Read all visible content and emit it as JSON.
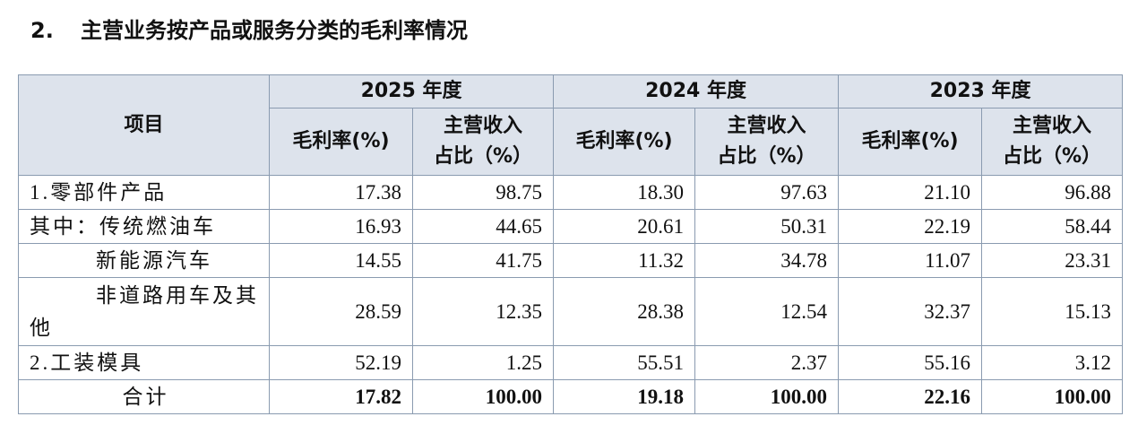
{
  "heading": {
    "number": "2.",
    "title": "主营业务按产品或服务分类的毛利率情况"
  },
  "table": {
    "corner": "项目",
    "years": [
      "2025 年度",
      "2024 年度",
      "2023 年度"
    ],
    "subheaders": [
      "毛利率(%)",
      "主营收入\n占比（%）",
      "毛利率(%)",
      "主营收入\n占比（%）",
      "毛利率(%)",
      "主营收入\n占比（%）"
    ],
    "rows": [
      {
        "label": "1.零部件产品",
        "cells": [
          "17.38",
          "98.75",
          "18.30",
          "97.63",
          "21.10",
          "96.88"
        ]
      },
      {
        "label": "其中：传统燃油车",
        "cells": [
          "16.93",
          "44.65",
          "20.61",
          "50.31",
          "22.19",
          "58.44"
        ]
      },
      {
        "label": "新能源汽车",
        "cells": [
          "14.55",
          "41.75",
          "11.32",
          "34.78",
          "11.07",
          "23.31"
        ]
      },
      {
        "label": "非道路用车及其他",
        "cells": [
          "28.59",
          "12.35",
          "28.38",
          "12.54",
          "32.37",
          "15.13"
        ]
      },
      {
        "label": "2.工装模具",
        "cells": [
          "52.19",
          "1.25",
          "55.51",
          "2.37",
          "55.16",
          "3.12"
        ]
      },
      {
        "label": "合计",
        "cells": [
          "17.82",
          "100.00",
          "19.18",
          "100.00",
          "22.16",
          "100.00"
        ]
      }
    ]
  }
}
